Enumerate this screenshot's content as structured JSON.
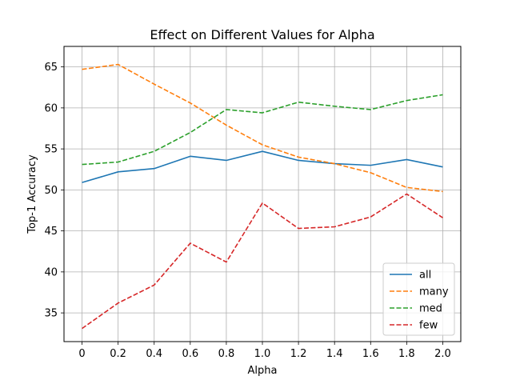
{
  "chart_data": {
    "type": "line",
    "title": "Effect on Different Values for Alpha",
    "xlabel": "Alpha",
    "ylabel": "Top-1 Accuracy",
    "x": [
      0,
      0.2,
      0.4,
      0.6,
      0.8,
      1.0,
      1.2,
      1.4,
      1.6,
      1.8,
      2.0
    ],
    "x_tick_labels": [
      "0",
      "0.2",
      "0.4",
      "0.6",
      "0.8",
      "1.0",
      "1.2",
      "1.4",
      "1.6",
      "1.8",
      "2.0"
    ],
    "y_ticks": [
      35,
      40,
      45,
      50,
      55,
      60,
      65
    ],
    "y_tick_labels": [
      "35",
      "40",
      "45",
      "50",
      "55",
      "60",
      "65"
    ],
    "xlim": [
      -0.1,
      2.1
    ],
    "ylim": [
      31.5,
      67.5
    ],
    "grid": true,
    "legend_position": "lower-right",
    "series": [
      {
        "name": "all",
        "color": "#1f77b4",
        "style": "solid",
        "values": [
          50.9,
          52.2,
          52.6,
          54.1,
          53.6,
          54.7,
          53.6,
          53.2,
          53.0,
          53.7,
          52.8
        ]
      },
      {
        "name": "many",
        "color": "#ff7f0e",
        "style": "dashed",
        "values": [
          64.7,
          65.3,
          62.9,
          60.6,
          57.9,
          55.5,
          54.0,
          53.2,
          52.1,
          50.3,
          49.8
        ]
      },
      {
        "name": "med",
        "color": "#2ca02c",
        "style": "dashed",
        "values": [
          53.1,
          53.4,
          54.7,
          57.0,
          59.8,
          59.4,
          60.7,
          60.2,
          59.8,
          60.9,
          61.6
        ]
      },
      {
        "name": "few",
        "color": "#d62728",
        "style": "dashed",
        "values": [
          33.1,
          36.2,
          38.4,
          43.5,
          41.2,
          48.4,
          45.3,
          45.5,
          46.7,
          49.5,
          46.6
        ]
      }
    ]
  }
}
